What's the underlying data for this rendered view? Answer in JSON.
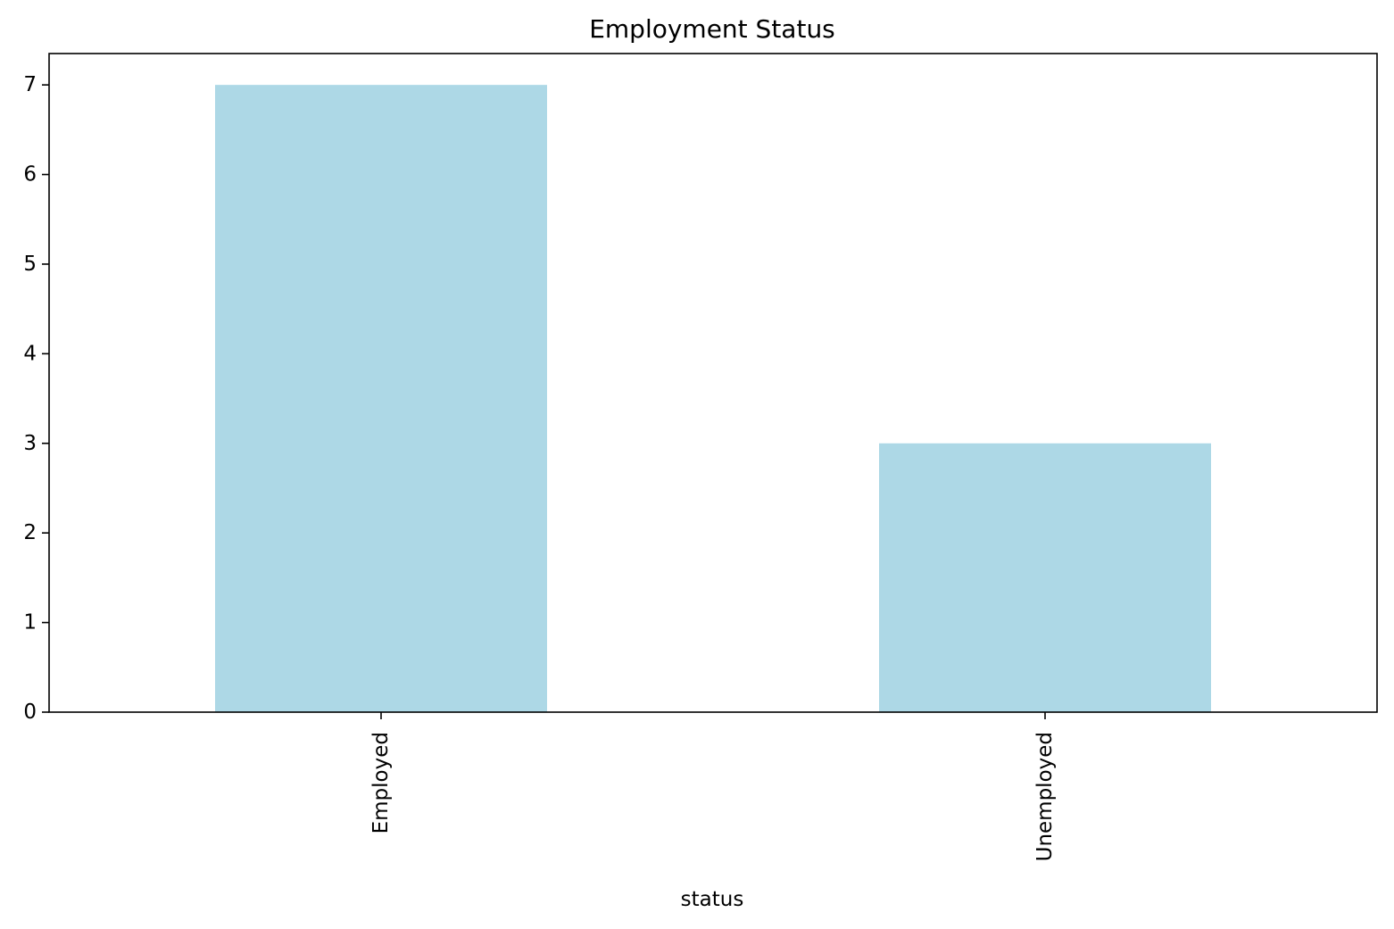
{
  "chart_data": {
    "type": "bar",
    "title": "Employment Status",
    "xlabel": "status",
    "ylabel": "",
    "categories": [
      "Employed",
      "Unemployed"
    ],
    "values": [
      7,
      3
    ],
    "ylim": [
      0,
      7.35
    ],
    "yticks": [
      0,
      1,
      2,
      3,
      4,
      5,
      6,
      7
    ],
    "bar_color": "#add8e6",
    "grid": false,
    "legend": "none"
  }
}
